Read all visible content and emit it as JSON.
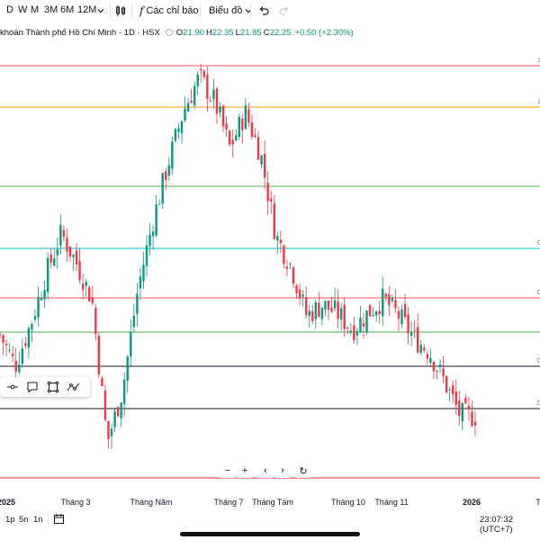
{
  "toolbar": {
    "timeframes": [
      "D",
      "W",
      "M",
      "3M",
      "6M",
      "12M"
    ],
    "indicators_label": "Các chỉ báo",
    "chart_type_label": "Biểu đồ"
  },
  "legend": {
    "title": "khoán Thành phố Hồ Chí Minh · 1D · HSX",
    "open_label": "O",
    "open": "21.90",
    "high_label": "H",
    "high": "22.35",
    "low_label": "L",
    "low": "21.85",
    "close_label": "C",
    "close": "22.25",
    "change": "+0.50 (+2.30%)"
  },
  "x_axis": {
    "labels": [
      "2025",
      "Tháng 3",
      "Tháng Năm",
      "Tháng 7",
      "Tháng Tám",
      "Tháng 10",
      "Tháng 11",
      "2026",
      "T"
    ]
  },
  "right_ticks": [
    "1",
    "1",
    "0",
    "0",
    "0",
    "0"
  ],
  "bottom_bar": {
    "ranges": [
      "1p",
      "5n",
      "1n"
    ],
    "time": "23:07:32 (UTC+7)"
  },
  "colors": {
    "up": "#089981",
    "down": "#f23645",
    "level_red": "#f7525f",
    "level_orange": "#ff9800",
    "level_green": "#4caf50",
    "level_teal": "#00bcd4",
    "level_black": "#131722"
  },
  "icons": [
    "compare-icon",
    "indicators-fx-icon",
    "chevron-down-icon",
    "undo-icon",
    "redo-icon",
    "date-range-icon",
    "zoom-out-icon",
    "zoom-in-icon",
    "scroll-left-icon",
    "scroll-right-icon",
    "reset-icon"
  ],
  "chart_data": {
    "type": "candlestick",
    "x": [
      "2025",
      "Tháng 3",
      "Tháng Năm",
      "Tháng 7",
      "Tháng Tám",
      "Tháng 10",
      "Tháng 11",
      "2026"
    ],
    "close_points": [
      25.2,
      24.1,
      25.6,
      27.4,
      28.9,
      27.8,
      26.5,
      21.3,
      23.2,
      26.9,
      29.4,
      31.5,
      33.4,
      34.6,
      33.7,
      32.0,
      33.3,
      31.8,
      28.8,
      27.7,
      25.9,
      26.3,
      26.0,
      25.4,
      26.0,
      26.5,
      25.9,
      25.1,
      24.6,
      23.5,
      22.3,
      22.25
    ],
    "last_close": 22.25
  }
}
